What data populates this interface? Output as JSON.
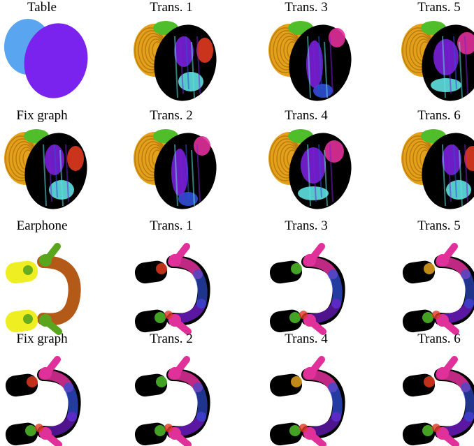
{
  "figure": {
    "rows": [
      {
        "object": "table",
        "cells": [
          {
            "label": "Table",
            "kind": "table-input"
          },
          {
            "label": "Trans. 1",
            "kind": "table-feature"
          },
          {
            "label": "Trans. 3",
            "kind": "table-feature"
          },
          {
            "label": "Trans. 5",
            "kind": "table-feature"
          }
        ]
      },
      {
        "object": "table",
        "cells": [
          {
            "label": "Fix graph",
            "kind": "table-feature"
          },
          {
            "label": "Trans. 2",
            "kind": "table-feature"
          },
          {
            "label": "Trans. 4",
            "kind": "table-feature"
          },
          {
            "label": "Trans. 6",
            "kind": "table-feature"
          }
        ]
      },
      {
        "object": "earphone",
        "cells": [
          {
            "label": "Earphone",
            "kind": "earphone-input"
          },
          {
            "label": "Trans. 1",
            "kind": "earphone-feature"
          },
          {
            "label": "Trans. 3",
            "kind": "earphone-feature"
          },
          {
            "label": "Trans. 5",
            "kind": "earphone-feature"
          }
        ]
      },
      {
        "object": "earphone",
        "cells": [
          {
            "label": "Fix graph",
            "kind": "earphone-feature"
          },
          {
            "label": "Trans. 2",
            "kind": "earphone-feature"
          },
          {
            "label": "Trans. 4",
            "kind": "earphone-feature"
          },
          {
            "label": "Trans. 6",
            "kind": "earphone-feature"
          }
        ]
      }
    ],
    "colors": {
      "table_back": "#5aa5f0",
      "table_front": "#7a22ee",
      "earphone_cup": "#eeee22",
      "earphone_band": "#b45a18",
      "earphone_joint": "#5aa51e",
      "feature_orange": "#e3a11b",
      "feature_green": "#4fbe2a",
      "feature_purple": "#7a1fd8",
      "feature_magenta": "#e0309a",
      "feature_cyan": "#5fe0e0",
      "feature_blue": "#3050d8",
      "feature_red": "#e03a20",
      "feature_black": "#000000"
    }
  }
}
